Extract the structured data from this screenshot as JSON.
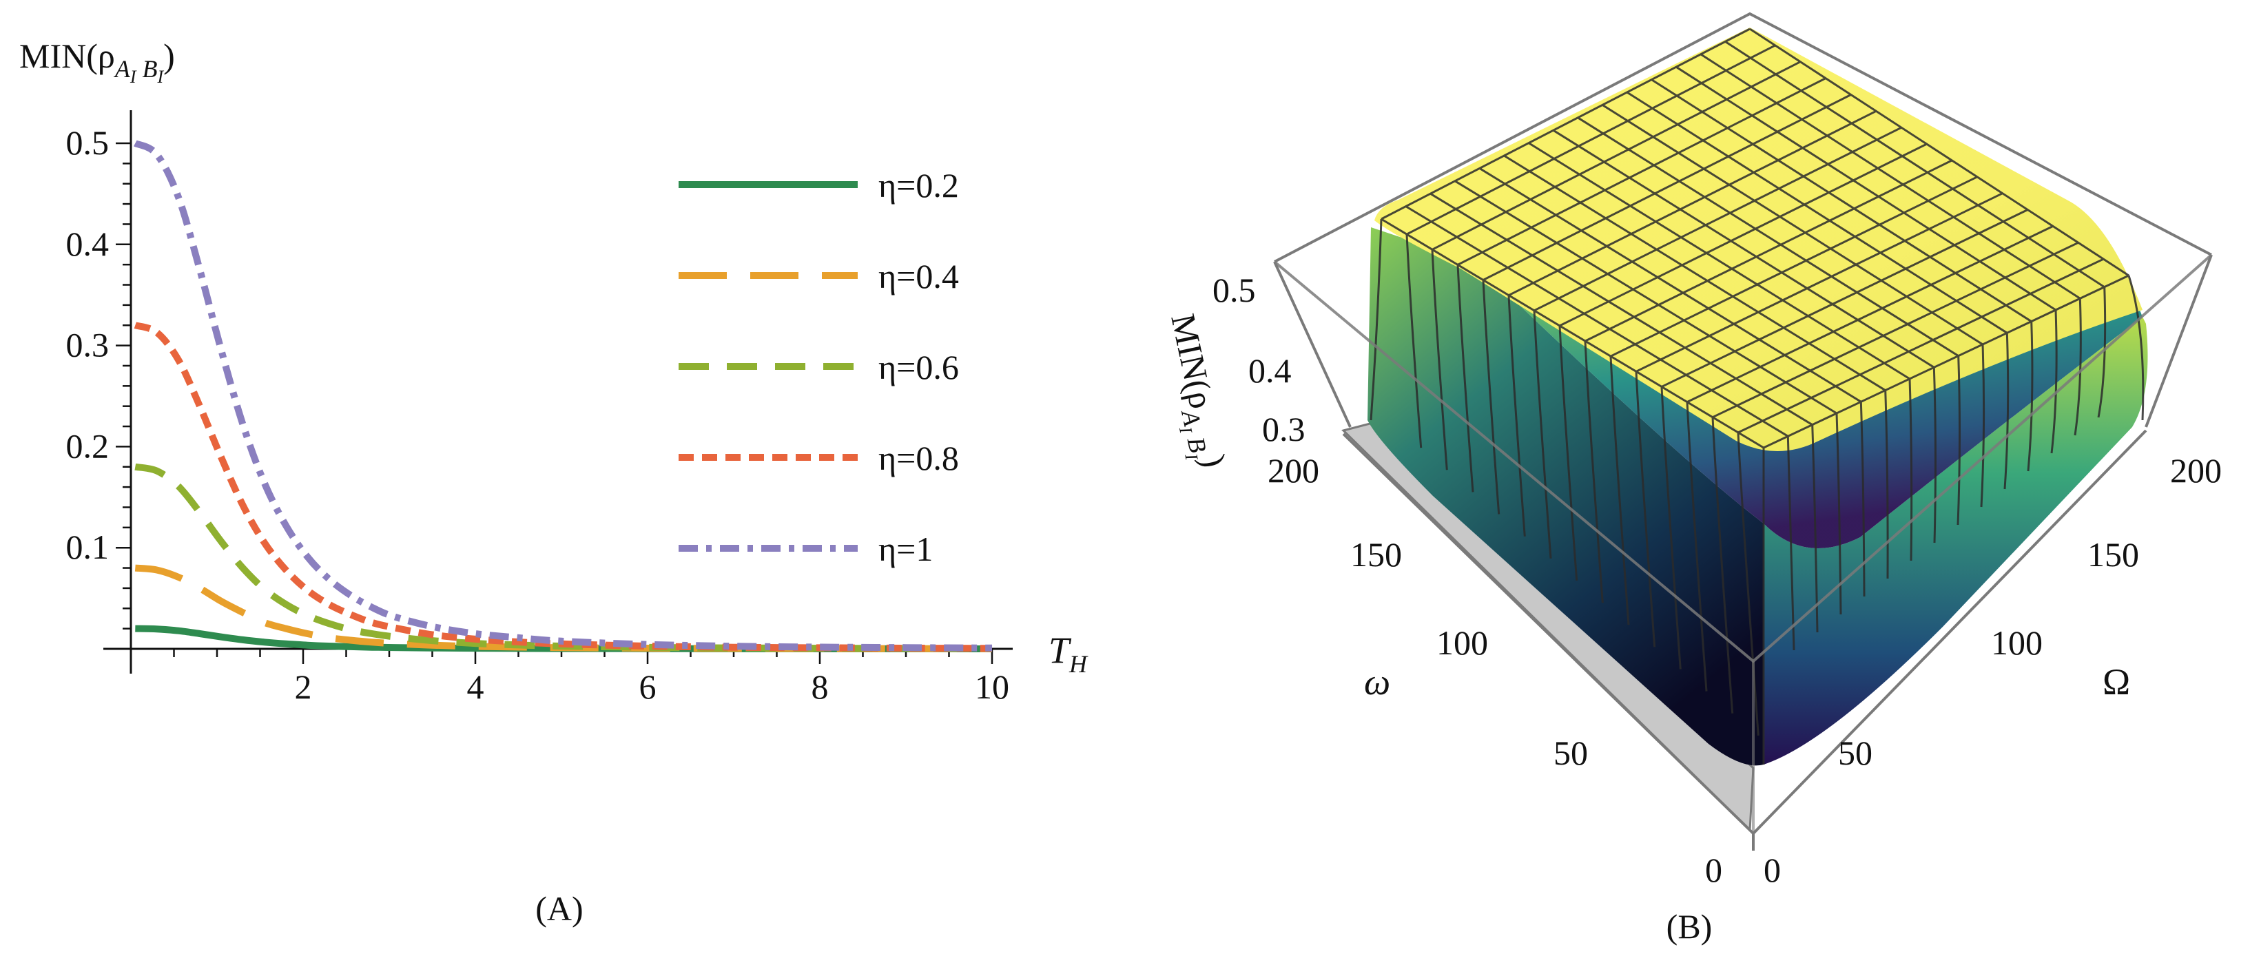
{
  "chart_data": [
    {
      "type": "line",
      "panel_label": "(A)",
      "ylabel": "MIN(ρ",
      "ylabel_sub": "A",
      "ylabel_sub_i1": "I",
      "ylabel_sub_b": " B",
      "ylabel_sub_i2": "I",
      "ylabel_close": ")",
      "xlabel": "T",
      "xlabel_sub": "H",
      "xlim": [
        0,
        10
      ],
      "ylim": [
        0,
        0.5
      ],
      "x_ticks": [
        {
          "value": 2,
          "label": "2"
        },
        {
          "value": 4,
          "label": "4"
        },
        {
          "value": 6,
          "label": "6"
        },
        {
          "value": 8,
          "label": "8"
        },
        {
          "value": 10,
          "label": "10"
        }
      ],
      "y_ticks": [
        {
          "value": 0.1,
          "label": "0.1"
        },
        {
          "value": 0.2,
          "label": "0.2"
        },
        {
          "value": 0.3,
          "label": "0.3"
        },
        {
          "value": 0.4,
          "label": "0.4"
        },
        {
          "value": 0.5,
          "label": "0.5"
        }
      ],
      "x": [
        0.05,
        0.3,
        0.55,
        0.8,
        1.05,
        1.3,
        1.55,
        1.8,
        2.05,
        2.3,
        2.55,
        2.8,
        3.05,
        3.5,
        4.0,
        4.5,
        5.0,
        6.0,
        7.0,
        8.0,
        9.0,
        10.0
      ],
      "series": [
        {
          "name": "η=0.2",
          "color": "#2e8b4f",
          "style": "solid",
          "values": [
            0.02,
            0.0196,
            0.0179,
            0.015,
            0.0118,
            0.0089,
            0.0066,
            0.0049,
            0.0036,
            0.0027,
            0.0021,
            0.0016,
            0.0013,
            0.0009,
            0.0006,
            0.0004,
            0.0003,
            0.0002,
            0.0001,
            0.0001,
            0.0001,
            0.0
          ]
        },
        {
          "name": "η=0.4",
          "color": "#e8a02c",
          "style": "long-dash",
          "values": [
            0.08,
            0.078,
            0.071,
            0.06,
            0.047,
            0.036,
            0.026,
            0.02,
            0.015,
            0.011,
            0.0085,
            0.0066,
            0.0052,
            0.0036,
            0.0024,
            0.0017,
            0.0012,
            0.0007,
            0.0004,
            0.0003,
            0.0002,
            0.0001
          ]
        },
        {
          "name": "η=0.6",
          "color": "#8fb030",
          "style": "dash",
          "values": [
            0.18,
            0.176,
            0.161,
            0.135,
            0.106,
            0.08,
            0.059,
            0.044,
            0.033,
            0.025,
            0.019,
            0.015,
            0.012,
            0.0081,
            0.0054,
            0.0038,
            0.0027,
            0.0015,
            0.0009,
            0.0006,
            0.0004,
            0.0003
          ]
        },
        {
          "name": "η=0.8",
          "color": "#e8643c",
          "style": "short-dash",
          "values": [
            0.32,
            0.313,
            0.286,
            0.24,
            0.189,
            0.142,
            0.105,
            0.078,
            0.058,
            0.044,
            0.034,
            0.026,
            0.021,
            0.014,
            0.0096,
            0.0068,
            0.0049,
            0.0027,
            0.0016,
            0.0011,
            0.0007,
            0.0005
          ]
        },
        {
          "name": "η=1",
          "color": "#8a7fbf",
          "style": "dash-dot",
          "values": [
            0.5,
            0.489,
            0.447,
            0.375,
            0.295,
            0.222,
            0.164,
            0.122,
            0.091,
            0.069,
            0.053,
            0.041,
            0.032,
            0.022,
            0.015,
            0.011,
            0.0076,
            0.0043,
            0.0026,
            0.0017,
            0.0012,
            0.0008
          ]
        }
      ],
      "legend_position": "top-right"
    },
    {
      "type": "surface3d",
      "panel_label": "(B)",
      "zlabel": "MIN(ρ",
      "zlabel_sub": "A",
      "zlabel_sub_i1": "I",
      "zlabel_sub_b": " B",
      "zlabel_sub_i2": "I",
      "zlabel_close": ")",
      "x_axis_label": "ω",
      "y_axis_label": "Ω",
      "x_ticks": [
        "0",
        "50",
        "100",
        "150",
        "200"
      ],
      "y_ticks": [
        "0",
        "50",
        "100",
        "150",
        "200"
      ],
      "z_ticks": [
        "0.3",
        "0.4",
        "0.5"
      ],
      "xlim": [
        0,
        200
      ],
      "ylim": [
        0,
        200
      ],
      "zlim": [
        0.3,
        0.5
      ],
      "description_values": {
        "plateau_z": 0.5,
        "min_corner_z": 0.3
      },
      "colormap": [
        "#2a0f52",
        "#1f4e79",
        "#1f8c82",
        "#6ec25a",
        "#d7e64a",
        "#fbf06a"
      ]
    }
  ]
}
